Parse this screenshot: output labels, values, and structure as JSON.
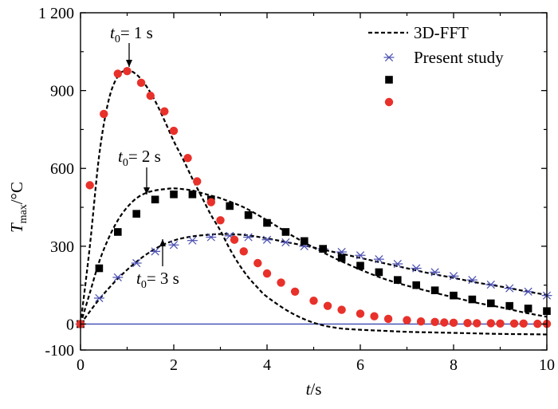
{
  "chart_data": {
    "type": "scatter",
    "title": "",
    "xlabel": {
      "symbol": "t",
      "unit": "/s"
    },
    "ylabel": {
      "symbol": "T",
      "subscript": "max",
      "unit": "/°C"
    },
    "xlim": [
      0,
      10
    ],
    "ylim": [
      -100,
      1200
    ],
    "x_ticks": [
      0,
      2,
      4,
      6,
      8,
      10
    ],
    "x_tick_labels": [
      "0",
      "2",
      "4",
      "6",
      "8",
      "10"
    ],
    "y_ticks": [
      -100,
      0,
      300,
      600,
      900,
      1200
    ],
    "y_tick_labels": [
      "-100",
      "0",
      "300",
      "600",
      "900",
      "1 200"
    ],
    "grid": false,
    "legend_position": "top-right",
    "legend": [
      {
        "label": "3D-FFT",
        "style": "dashed-line"
      },
      {
        "label": "Present study",
        "style": "asterisk"
      },
      {
        "label": "",
        "style": "square"
      },
      {
        "label": "",
        "style": "circle"
      }
    ],
    "annotations": [
      {
        "symbol": "t",
        "subscript": "0",
        "text": "= 1 s",
        "arrow_to": [
          1.0,
          975
        ]
      },
      {
        "symbol": "t",
        "subscript": "0",
        "text": "= 2 s",
        "arrow_to": [
          1.4,
          510
        ]
      },
      {
        "symbol": "t",
        "subscript": "0",
        "text": "= 3 s",
        "arrow_to": [
          1.75,
          320
        ]
      }
    ],
    "baseline": {
      "y": 0,
      "color": "#3b4ab0"
    },
    "series": [
      {
        "name": "3D-FFT",
        "kind": "dashed-line",
        "color": "#000000",
        "curves": [
          {
            "x": [
              0,
              0.2,
              0.4,
              0.6,
              0.8,
              1.0,
              1.2,
              1.4,
              1.6,
              1.8,
              2.0,
              2.2,
              2.4,
              2.6,
              2.8,
              3.0,
              3.2,
              3.4,
              3.6,
              3.8,
              4.0,
              4.5,
              5.0,
              5.5,
              6.0,
              6.5,
              7.0,
              7.5,
              8.0,
              8.5,
              9.0,
              9.5,
              10.0
            ],
            "y": [
              0,
              300,
              650,
              860,
              955,
              978,
              962,
              920,
              860,
              785,
              705,
              635,
              560,
              490,
              420,
              360,
              290,
              230,
              180,
              140,
              105,
              45,
              5,
              -15,
              -22,
              -26,
              -30,
              -32,
              -34,
              -36,
              -38,
              -39,
              -40
            ]
          },
          {
            "x": [
              0,
              0.2,
              0.4,
              0.6,
              0.8,
              1.0,
              1.2,
              1.4,
              1.6,
              1.8,
              2.0,
              2.2,
              2.4,
              2.6,
              2.8,
              3.0,
              3.5,
              4.0,
              4.5,
              5.0,
              5.5,
              6.0,
              6.5,
              7.0,
              7.5,
              8.0,
              8.5,
              9.0,
              9.5,
              10.0
            ],
            "y": [
              0,
              120,
              240,
              330,
              400,
              450,
              485,
              505,
              515,
              520,
              523,
              520,
              515,
              505,
              495,
              485,
              450,
              400,
              345,
              295,
              250,
              210,
              175,
              148,
              125,
              103,
              82,
              65,
              45,
              28
            ]
          },
          {
            "x": [
              0,
              0.4,
              0.8,
              1.2,
              1.6,
              2.0,
              2.4,
              2.8,
              3.0,
              3.2,
              3.6,
              4.0,
              4.5,
              5.0,
              5.5,
              6.0,
              6.5,
              7.0,
              7.5,
              8.0,
              8.5,
              9.0,
              9.5,
              10.0
            ],
            "y": [
              0,
              95,
              175,
              240,
              290,
              322,
              338,
              345,
              347,
              347,
              342,
              330,
              313,
              295,
              275,
              255,
              235,
              215,
              195,
              178,
              160,
              145,
              128,
              112
            ]
          }
        ]
      },
      {
        "name": "Present study",
        "kind": "asterisk",
        "color": "#4a4fb0",
        "x": [
          0,
          0.4,
          0.8,
          1.2,
          1.6,
          2.0,
          2.4,
          2.8,
          3.2,
          3.6,
          4.0,
          4.4,
          4.8,
          5.2,
          5.6,
          6.0,
          6.4,
          6.8,
          7.2,
          7.6,
          8.0,
          8.4,
          8.8,
          9.2,
          9.6,
          10.0
        ],
        "y": [
          0,
          100,
          180,
          235,
          280,
          305,
          322,
          335,
          340,
          335,
          325,
          315,
          300,
          290,
          278,
          265,
          250,
          232,
          215,
          200,
          185,
          170,
          152,
          138,
          125,
          110
        ]
      },
      {
        "name": "",
        "kind": "square",
        "color": "#000000",
        "x": [
          0,
          0.4,
          0.8,
          1.2,
          1.6,
          2.0,
          2.4,
          2.8,
          3.2,
          3.6,
          4.0,
          4.4,
          4.8,
          5.2,
          5.6,
          6.0,
          6.4,
          6.8,
          7.2,
          7.6,
          8.0,
          8.4,
          8.8,
          9.2,
          9.6,
          10.0
        ],
        "y": [
          0,
          215,
          355,
          425,
          480,
          500,
          500,
          480,
          455,
          420,
          390,
          355,
          320,
          290,
          255,
          225,
          200,
          170,
          150,
          130,
          110,
          95,
          80,
          70,
          60,
          50
        ]
      },
      {
        "name": "",
        "kind": "circle",
        "color": "#e8312a",
        "x": [
          0,
          0.2,
          0.5,
          0.8,
          1.0,
          1.3,
          1.5,
          1.8,
          2.0,
          2.3,
          2.5,
          2.8,
          3.0,
          3.3,
          3.5,
          3.8,
          4.0,
          4.3,
          4.6,
          5.0,
          5.3,
          5.6,
          6.0,
          6.3,
          6.6,
          7.0,
          7.3,
          7.6,
          7.8,
          8.0,
          8.3,
          8.5,
          8.8,
          9.0,
          9.3,
          9.5,
          9.8,
          10.0
        ],
        "y": [
          0,
          535,
          810,
          965,
          975,
          930,
          880,
          820,
          745,
          640,
          550,
          470,
          400,
          325,
          280,
          235,
          195,
          160,
          125,
          90,
          70,
          55,
          40,
          30,
          20,
          15,
          10,
          8,
          6,
          5,
          4,
          3,
          3,
          2,
          2,
          2,
          1,
          1
        ]
      }
    ]
  }
}
